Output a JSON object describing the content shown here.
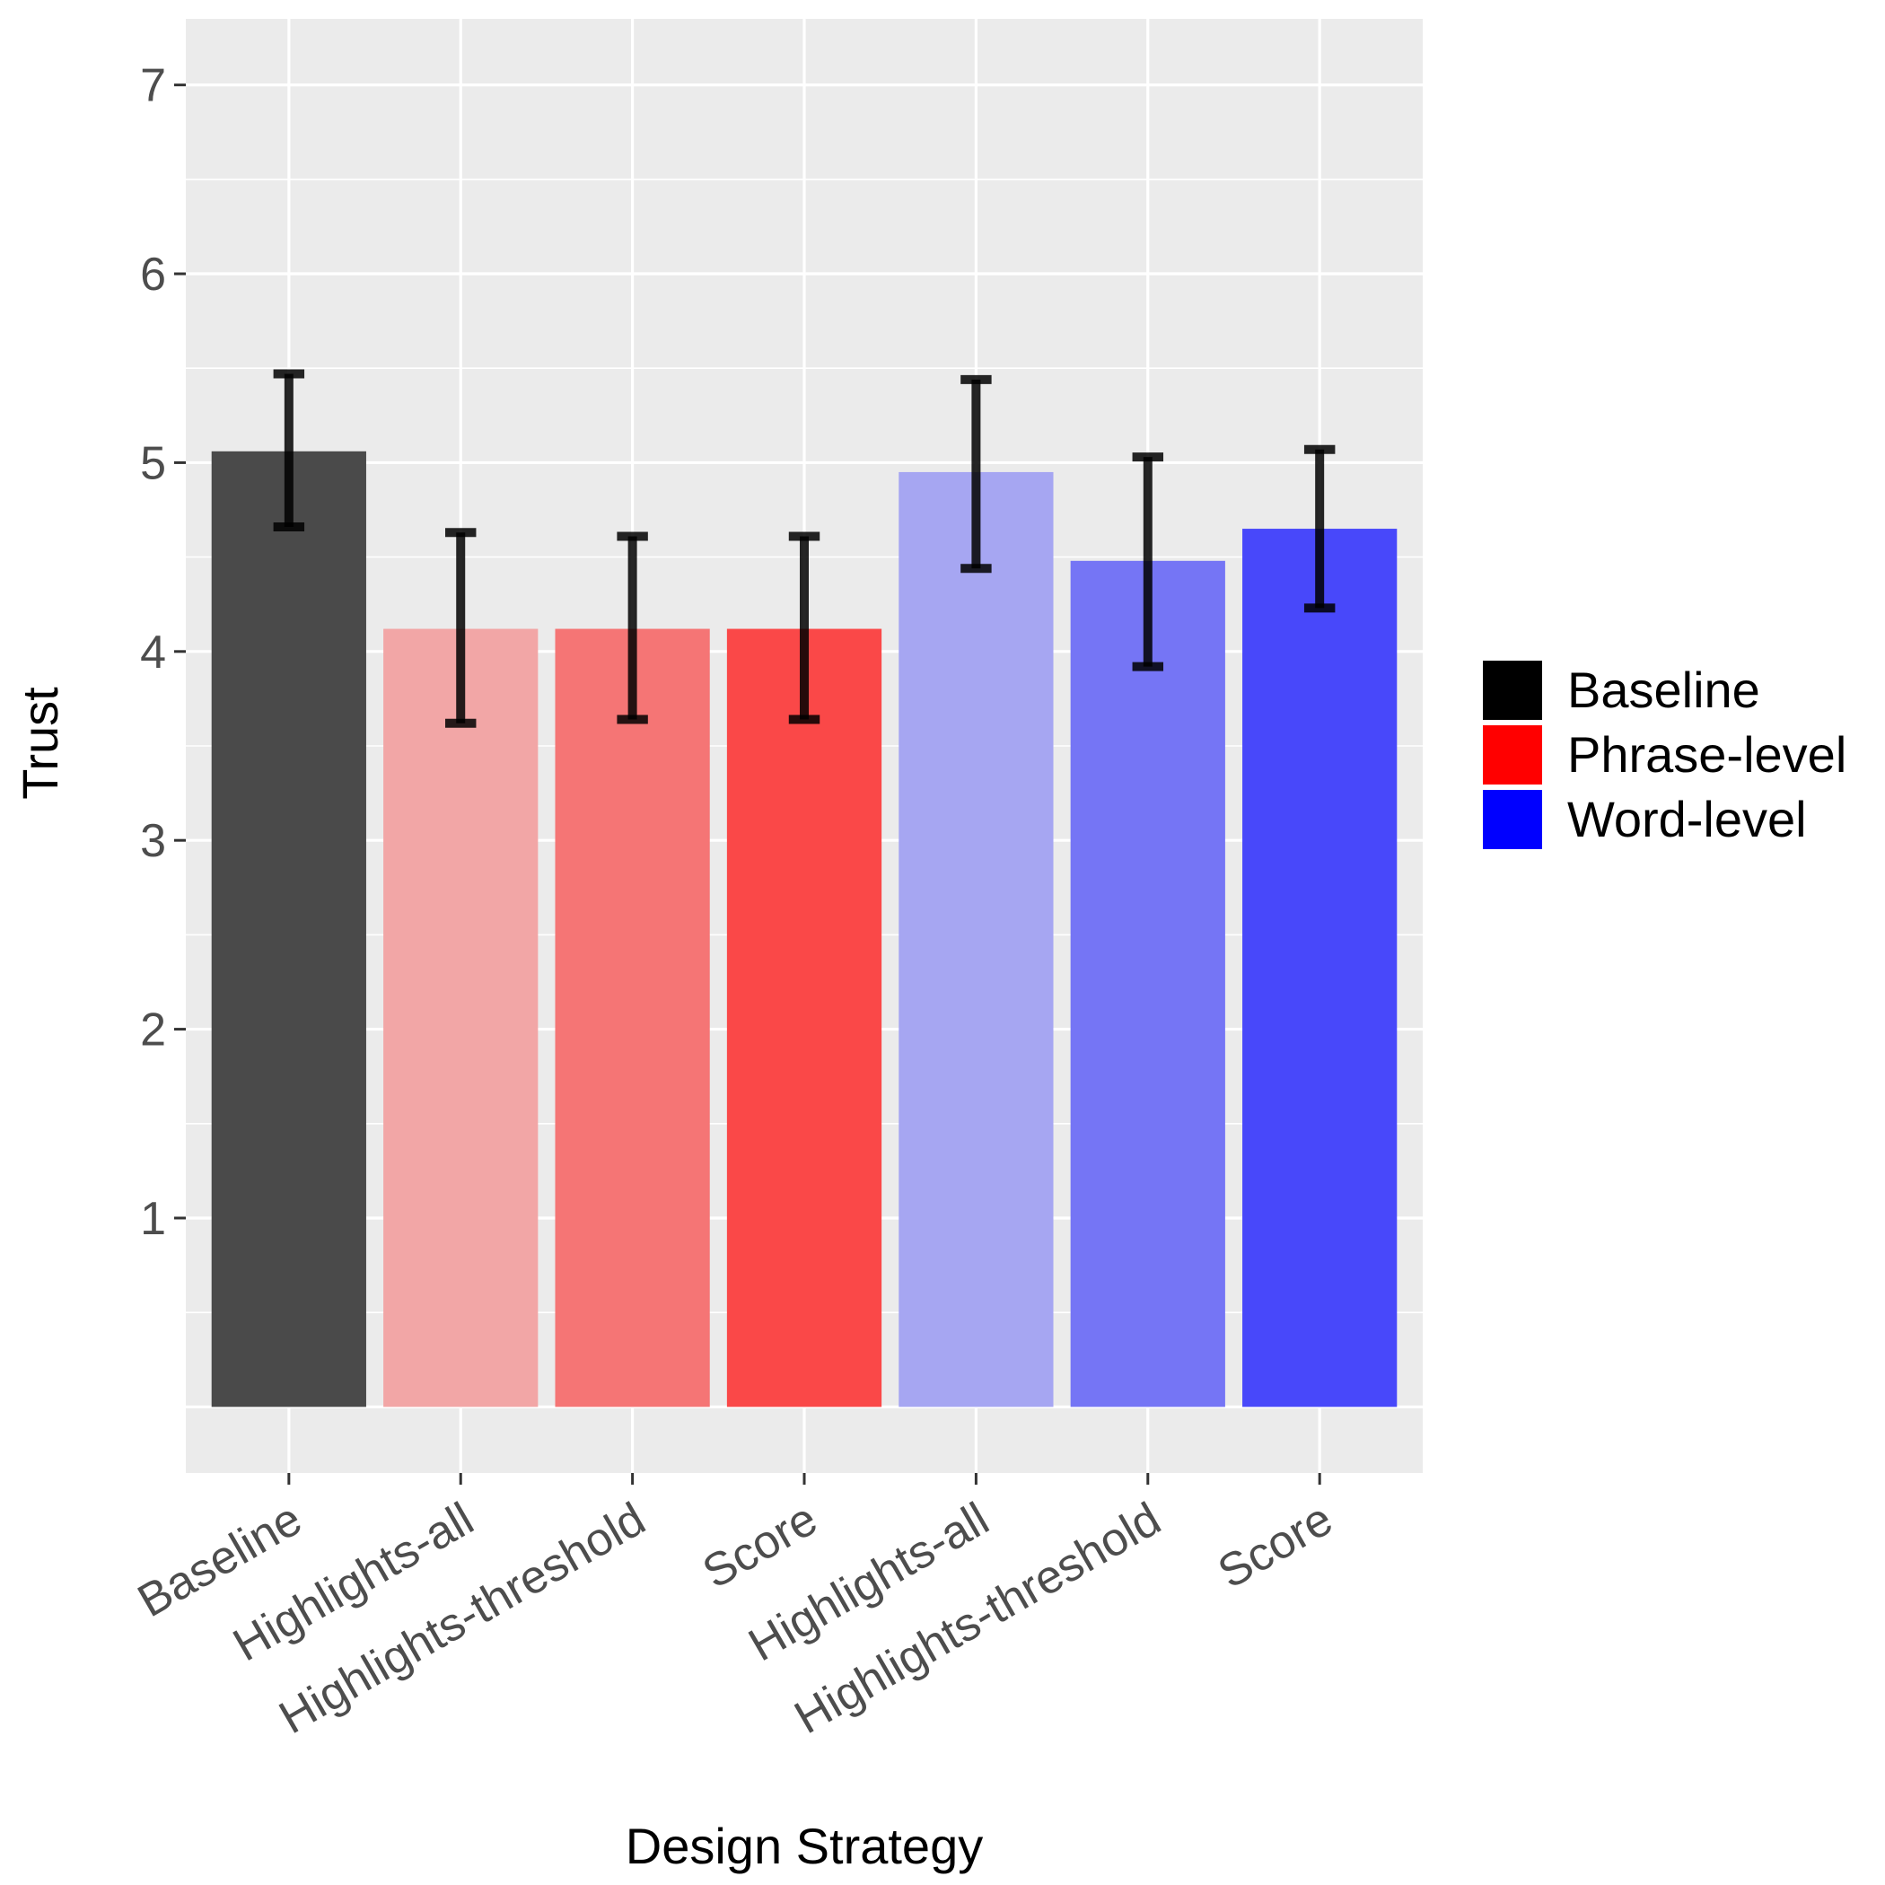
{
  "chart_data": {
    "type": "bar",
    "title": "",
    "xlabel": "Design Strategy",
    "ylabel": "Trust",
    "ylim": [
      -0.35,
      7.35
    ],
    "yticks": [
      1,
      2,
      3,
      4,
      5,
      6,
      7
    ],
    "grid": true,
    "legend": {
      "placement": "right",
      "entries": [
        {
          "name": "Baseline",
          "color": "#000000"
        },
        {
          "name": "Phrase-level",
          "color": "#ff0000"
        },
        {
          "name": "Word-level",
          "color": "#0000ff"
        }
      ]
    },
    "categories": [
      "Baseline",
      "Highlights-all",
      "Highlights-threshold",
      "Score",
      "Highlights-all",
      "Highlights-threshold",
      "Score"
    ],
    "groups": [
      "Baseline",
      "Phrase-level",
      "Phrase-level",
      "Phrase-level",
      "Word-level",
      "Word-level",
      "Word-level"
    ],
    "values": [
      5.06,
      4.12,
      4.12,
      4.12,
      4.95,
      4.48,
      4.65
    ],
    "error_low": [
      4.66,
      3.62,
      3.64,
      3.64,
      4.44,
      3.92,
      4.23
    ],
    "error_high": [
      5.47,
      4.63,
      4.61,
      4.61,
      5.44,
      5.03,
      5.07
    ],
    "bar_colors": [
      "#4a4a4a",
      "#f2a6a6",
      "#f57575",
      "#fa4848",
      "#a6a6f2",
      "#7575f5",
      "#4848fa"
    ]
  }
}
